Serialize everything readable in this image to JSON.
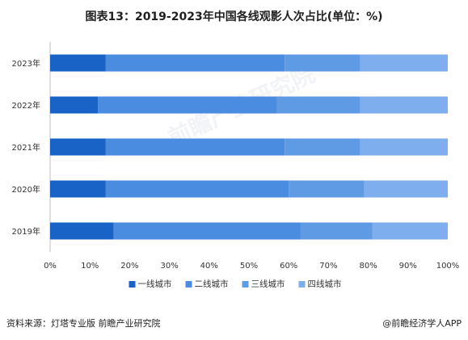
{
  "chart_data": {
    "type": "bar",
    "orientation": "horizontal",
    "stacked": true,
    "title": "图表13：2019-2023年中国各线观影人次占比(单位：%)",
    "categories": [
      "2023年",
      "2022年",
      "2021年",
      "2020年",
      "2019年"
    ],
    "series": [
      {
        "name": "一线城市",
        "color": "#1a63c6",
        "values": [
          14,
          12,
          14,
          14,
          16
        ]
      },
      {
        "name": "二线城市",
        "color": "#4a8de0",
        "values": [
          45,
          45,
          45,
          46,
          47
        ]
      },
      {
        "name": "三线城市",
        "color": "#5f9ae4",
        "values": [
          19,
          21,
          19,
          19,
          18
        ]
      },
      {
        "name": "四线城市",
        "color": "#7eaeed",
        "values": [
          22,
          22,
          22,
          21,
          19
        ]
      }
    ],
    "xlim": [
      0,
      100
    ],
    "xticks": [
      "0%",
      "10%",
      "20%",
      "30%",
      "40%",
      "50%",
      "60%",
      "70%",
      "80%",
      "90%",
      "100%"
    ],
    "legend_position": "bottom",
    "grid": false
  },
  "footer": {
    "source": "资料来源：灯塔专业版 前瞻产业研究院",
    "credit": "@前瞻经济学人APP"
  },
  "watermark": {
    "text": "前瞻产业研究院"
  }
}
